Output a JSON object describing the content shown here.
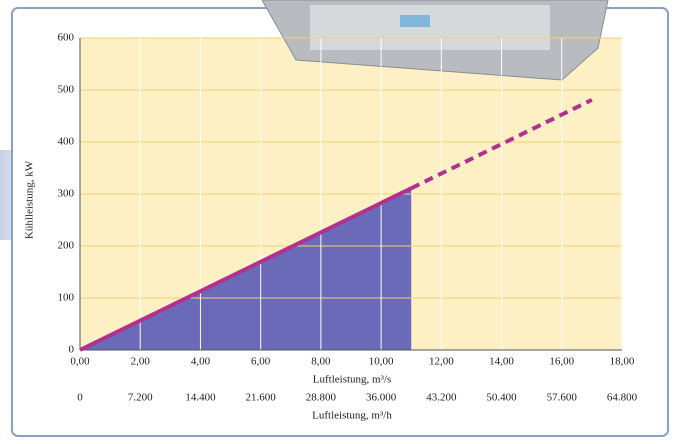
{
  "chart_data": {
    "type": "line",
    "y_label": "Kühlleistung, kW",
    "x_label": "Luftleistung, m³/s",
    "x2_label": "Luftleistung, m³/h",
    "xlim": [
      0,
      18
    ],
    "xticks": [
      {
        "value": 0,
        "label": "0,00"
      },
      {
        "value": 2,
        "label": "2,00"
      },
      {
        "value": 4,
        "label": "4,00"
      },
      {
        "value": 6,
        "label": "6,00"
      },
      {
        "value": 8,
        "label": "8,00"
      },
      {
        "value": 10,
        "label": "10,00"
      },
      {
        "value": 12,
        "label": "12,00"
      },
      {
        "value": 14,
        "label": "14,00"
      },
      {
        "value": 16,
        "label": "16,00"
      },
      {
        "value": 18,
        "label": "18,00"
      }
    ],
    "x2lim": [
      0,
      64800
    ],
    "x2ticks": [
      0,
      {
        "value": 7200,
        "label": "7.200"
      },
      {
        "value": 14400,
        "label": "14.400"
      },
      {
        "value": 21600,
        "label": "21.600"
      },
      {
        "value": 28800,
        "label": "28.800"
      },
      {
        "value": 36000,
        "label": "36.000"
      },
      {
        "value": 43200,
        "label": "43.200"
      },
      {
        "value": 50400,
        "label": "50.400"
      },
      {
        "value": 57600,
        "label": "57.600"
      },
      {
        "value": 64800,
        "label": "64.800"
      }
    ],
    "ylim": [
      0,
      600
    ],
    "yticks": [
      0,
      100,
      200,
      300,
      400,
      500,
      600
    ],
    "grid": true,
    "series": [
      {
        "color": "#b3308f",
        "fill": "#6a6ab8",
        "style": "solid",
        "x": [
          0,
          11
        ],
        "values": [
          0,
          311
        ]
      },
      {
        "color": "#b3308f",
        "style": "dashed",
        "x": [
          11,
          17
        ],
        "values": [
          311,
          481
        ]
      }
    ]
  }
}
